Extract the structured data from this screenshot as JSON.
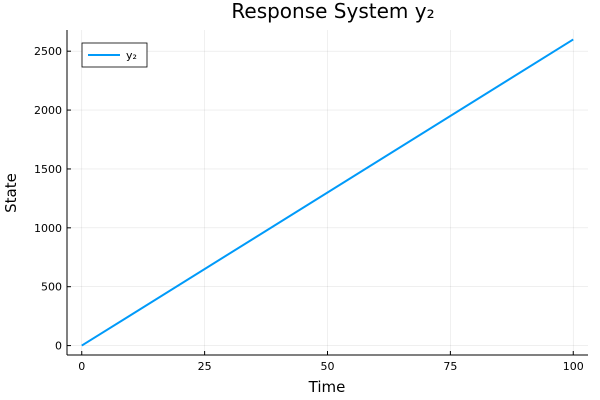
{
  "chart_data": {
    "type": "line",
    "title": "Response System y₂",
    "xlabel": "Time",
    "ylabel": "State",
    "xlim": [
      -3,
      103
    ],
    "ylim": [
      -80,
      2680
    ],
    "xticks": [
      0,
      25,
      50,
      75,
      100
    ],
    "yticks": [
      0,
      500,
      1000,
      1500,
      2000,
      2500
    ],
    "grid": true,
    "legend_position": "top-left",
    "series": [
      {
        "name": "y₂",
        "color": "#009af9",
        "x": [
          0,
          100
        ],
        "y": [
          0,
          2600
        ]
      }
    ]
  }
}
